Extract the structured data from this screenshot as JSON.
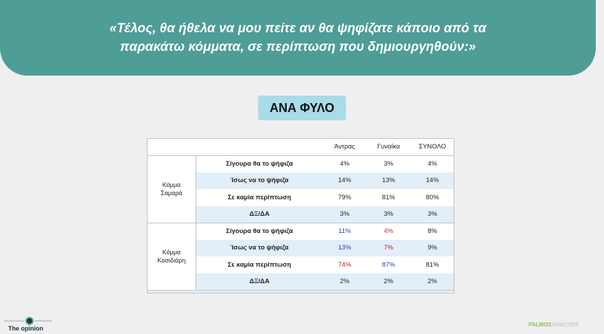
{
  "banner": {
    "line1": "«Τέλος, θα ήθελα να μου πείτε αν θα ψηφίζατε κάποιο από τα",
    "line2": "παρακάτω κόμματα, σε περίπτωση που δημιουργηθούν:»"
  },
  "subtitle": "ΑΝΑ ΦΥΛΟ",
  "table": {
    "headers": [
      "Άντρας",
      "Γυναίκα",
      "ΣΥΝΟΛΟ"
    ],
    "groups": [
      {
        "name_line1": "Κόμμα",
        "name_line2": "Σαμαρά",
        "rows": [
          {
            "label": "Σίγουρα θα το ψήφιζα",
            "values": [
              "4%",
              "3%",
              "4%"
            ]
          },
          {
            "label": "Ίσως να το ψήφιζα",
            "values": [
              "14%",
              "13%",
              "14%"
            ]
          },
          {
            "label": "Σε καμία περίπτωση",
            "values": [
              "79%",
              "81%",
              "80%"
            ]
          },
          {
            "label": "ΔΞ/ΔΑ",
            "values": [
              "3%",
              "3%",
              "3%"
            ]
          }
        ]
      },
      {
        "name_line1": "Κόμμα",
        "name_line2": "Κασιδιάρη",
        "rows": [
          {
            "label": "Σίγουρα θα το ψήφιζα",
            "values": [
              "11%",
              "4%",
              "8%"
            ]
          },
          {
            "label": "Ίσως να το ψήφιζα",
            "values": [
              "13%",
              "7%",
              "9%"
            ]
          },
          {
            "label": "Σε καμία περίπτωση",
            "values": [
              "74%",
              "87%",
              "81%"
            ]
          },
          {
            "label": "ΔΞ/ΔΑ",
            "values": [
              "2%",
              "2%",
              "2%"
            ]
          }
        ]
      }
    ]
  },
  "colors": {
    "banner": "#4e9d96",
    "subtitle_bg": "#a9dbe8",
    "highlight_blue": "#2b3fb3",
    "highlight_red": "#c0282c"
  },
  "footer": {
    "left_brand": "The opinion",
    "right_brand_part1": "PALMOS",
    "right_brand_part2": "ANALYSIS"
  }
}
